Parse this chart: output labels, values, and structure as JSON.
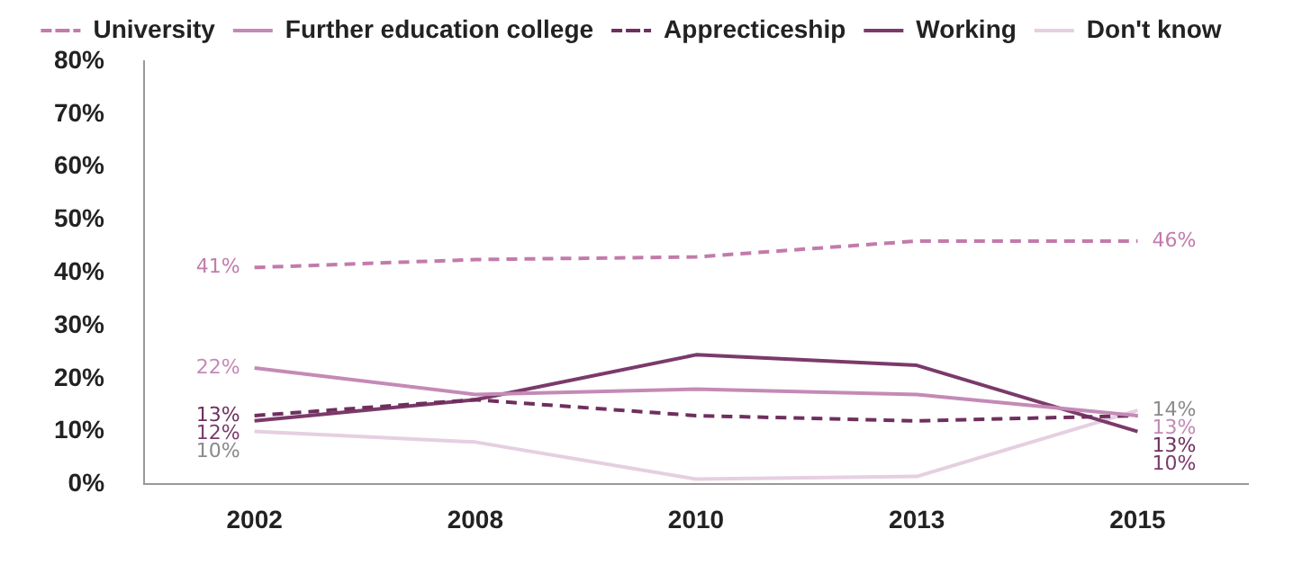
{
  "chart_data": {
    "type": "line",
    "categories": [
      "2002",
      "2008",
      "2010",
      "2013",
      "2015"
    ],
    "series": [
      {
        "name": "University",
        "color": "#c27bab",
        "line_style": "dashed",
        "values": [
          41,
          42.5,
          43,
          46,
          46
        ],
        "value_labels": [
          "41%",
          null,
          null,
          null,
          "46%"
        ]
      },
      {
        "name": "Further education college",
        "color": "#c48ab6",
        "line_style": "solid",
        "values": [
          22,
          17,
          18,
          17,
          13
        ],
        "value_labels": [
          "22%",
          null,
          null,
          null,
          "13%"
        ]
      },
      {
        "name": "Apprecticeship",
        "color": "#6e2f5e",
        "line_style": "dashed",
        "values": [
          13,
          16,
          13,
          12,
          13
        ],
        "value_labels": [
          "13%",
          null,
          null,
          null,
          "13%"
        ]
      },
      {
        "name": "Working",
        "color": "#7a3a6a",
        "line_style": "solid",
        "values": [
          12,
          16,
          24.5,
          22.5,
          10
        ],
        "value_labels": [
          "12%",
          null,
          null,
          null,
          "10%"
        ]
      },
      {
        "name": "Don't know",
        "color": "#e5cfe0",
        "line_style": "solid",
        "values": [
          10,
          8,
          1,
          1.5,
          14
        ],
        "value_labels": [
          "10%",
          null,
          null,
          null,
          "14%"
        ]
      }
    ],
    "ylim": [
      0,
      80
    ],
    "yticks": [
      {
        "value": 0,
        "label": "0%"
      },
      {
        "value": 10,
        "label": "10%"
      },
      {
        "value": 20,
        "label": "20%"
      },
      {
        "value": 30,
        "label": "30%"
      },
      {
        "value": 40,
        "label": "40%"
      },
      {
        "value": 50,
        "label": "50%"
      },
      {
        "value": 60,
        "label": "60%"
      },
      {
        "value": 70,
        "label": "70%"
      },
      {
        "value": 80,
        "label": "80%"
      }
    ],
    "grid": false,
    "legend": "top",
    "marker": "none"
  }
}
